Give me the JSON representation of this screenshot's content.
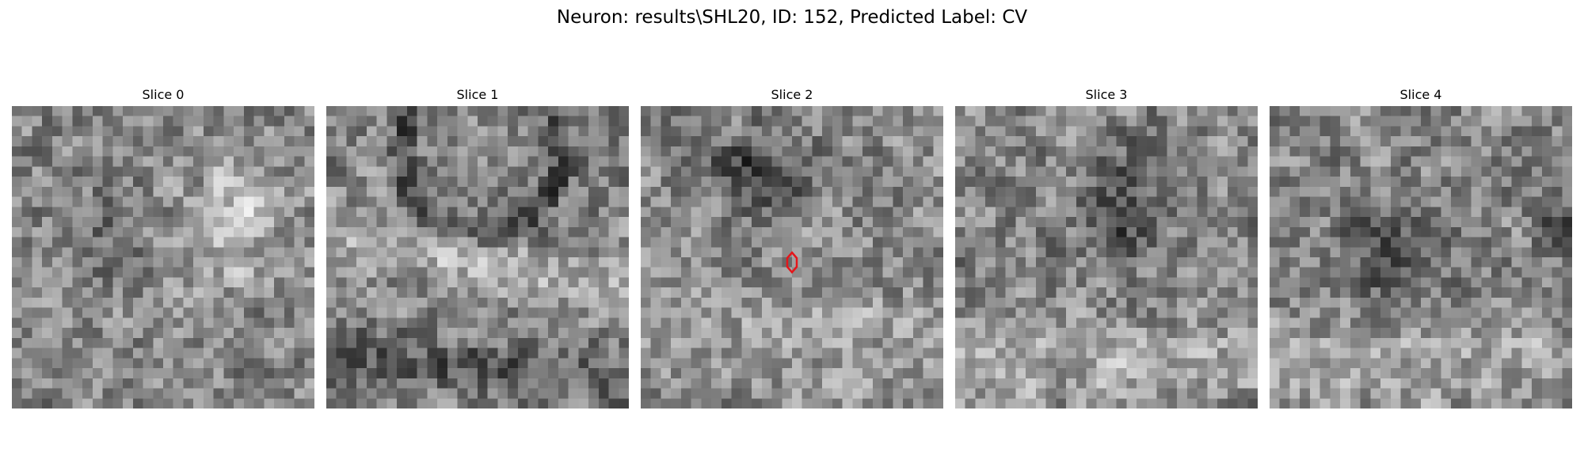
{
  "figure": {
    "title": "Neuron: results\\SHL20, ID: 152, Predicted Label: CV"
  },
  "panels": [
    {
      "title": "Slice 0",
      "seed": 11,
      "has_marker": false
    },
    {
      "title": "Slice 1",
      "seed": 23,
      "has_marker": false
    },
    {
      "title": "Slice 2",
      "seed": 37,
      "has_marker": true
    },
    {
      "title": "Slice 3",
      "seed": 41,
      "has_marker": false
    },
    {
      "title": "Slice 4",
      "seed": 59,
      "has_marker": false
    }
  ],
  "style": {
    "colormap": "gray",
    "marker_color": "#e4161b"
  }
}
